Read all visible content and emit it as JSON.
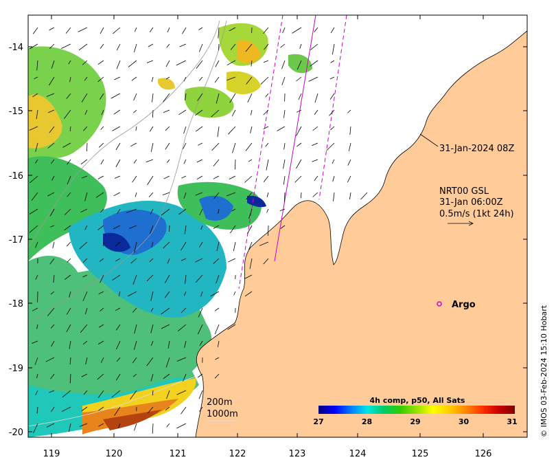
{
  "map": {
    "axes": {
      "x_ticks": [
        "119",
        "120",
        "121",
        "122",
        "123",
        "124",
        "125",
        "126"
      ],
      "y_ticks": [
        "-14",
        "-15",
        "-16",
        "-17",
        "-18",
        "-19",
        "-20"
      ]
    },
    "swath_time": "31-Jan-2024 08Z",
    "current_product": {
      "line1": "NRT00 GSL",
      "line2": "31-Jan 06:00Z",
      "line3": "0.5m/s (1kt 24h)"
    },
    "argo_label": "Argo",
    "contour_labels": [
      "200m",
      "1000m"
    ],
    "colorbar": {
      "title": "4h comp, p50, All Sats",
      "ticks": [
        "27",
        "28",
        "29",
        "30",
        "31"
      ],
      "colors": [
        "#00007f",
        "#0000ff",
        "#0080ff",
        "#00e5e5",
        "#00cc66",
        "#33cc00",
        "#99e000",
        "#ffff00",
        "#ffcc00",
        "#ff8800",
        "#ff3300",
        "#cc0000",
        "#7f0000"
      ]
    },
    "colors": {
      "land": "#ffcc99",
      "argo": "#cc00cc",
      "track": "#cc00cc"
    },
    "copyright": "© IMOS 03-Feb-2024 15:10 Hobart"
  }
}
